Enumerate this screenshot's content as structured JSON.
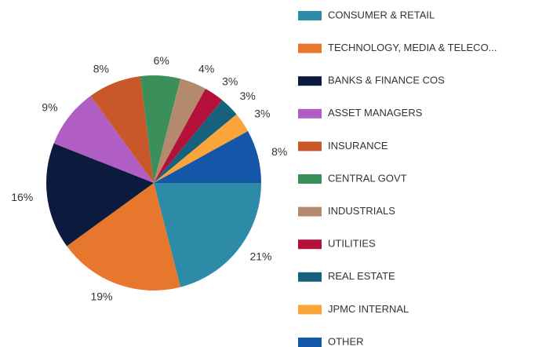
{
  "chart_data": {
    "type": "pie",
    "categories": [
      "CONSUMER & RETAIL",
      "TECHNOLOGY, MEDIA & TELECO...",
      "BANKS & FINANCE COS",
      "ASSET MANAGERS",
      "INSURANCE",
      "CENTRAL GOVT",
      "INDUSTRIALS",
      "UTILITIES",
      "REAL ESTATE",
      "JPMC INTERNAL",
      "OTHER"
    ],
    "values": [
      21,
      19,
      16,
      9,
      8,
      6,
      4,
      3,
      3,
      3,
      8
    ],
    "value_labels": [
      "21%",
      "19%",
      "16%",
      "9%",
      "8%",
      "6%",
      "4%",
      "3%",
      "3%",
      "3%",
      "8%"
    ],
    "colors": [
      "#2e8ba8",
      "#e8772e",
      "#0b1a3d",
      "#b05ec4",
      "#c8582a",
      "#3c8f5a",
      "#b38a6e",
      "#b5103a",
      "#16627e",
      "#f9a53a",
      "#1457a8"
    ],
    "legend": "right"
  }
}
